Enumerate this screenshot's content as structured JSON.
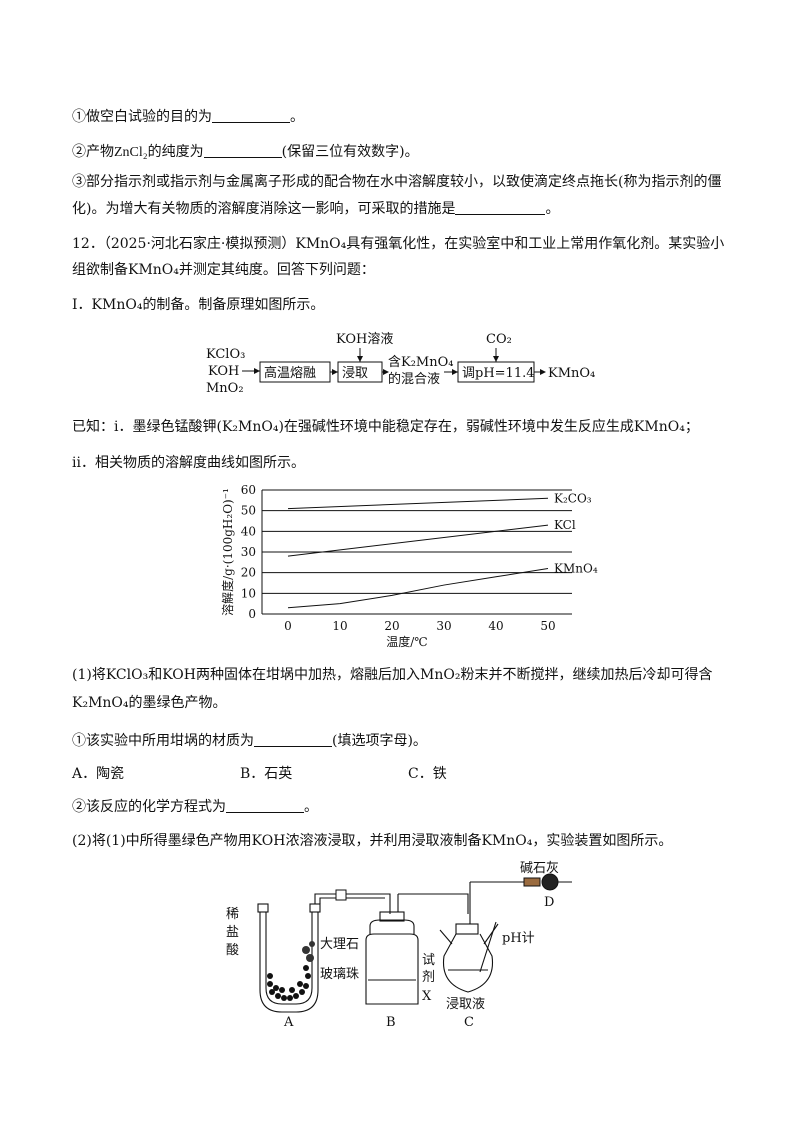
{
  "q_prev": {
    "item1_pre": "①做空白试验的目的为",
    "item1_post": "。",
    "item2_pre": "②产物",
    "item2_formula": "ZnCl₂",
    "item2_mid": "的纯度为",
    "item2_post": "(保留三位有效数字)。",
    "item3_line1": "③部分指示剂或指示剂与金属离子形成的配合物在水中溶解度较小，以致使滴定终点拖长(称为指示剂的僵",
    "item3_line2_pre": "化)。为增大有关物质的溶解度消除这一影响，可采取的措施是",
    "item3_post": "。"
  },
  "q12": {
    "number": "12．",
    "source": "（2025·河北石家庄·模拟预测）",
    "intro_a": "KMnO₄",
    "intro_b": "具有强氧化性，在实验室中和工业上常用作氧化剂。某实验小",
    "intro_line2_a": "组欲制备",
    "intro_line2_b": "KMnO₄",
    "intro_line2_c": "并测定其纯度。回答下列问题：",
    "part1_a": "I．",
    "part1_b": "KMnO₄",
    "part1_c": "的制备。制备原理如图所示。"
  },
  "flow": {
    "reactants": [
      "KClO₃",
      "KOH",
      "MnO₂"
    ],
    "box1": "高温熔融",
    "box2": "浸取",
    "box2_input": "KOH溶液",
    "intermediate_1": "含K₂MnO₄",
    "intermediate_2": "的混合液",
    "box3": "调pH=11.4",
    "box3_input": "CO₂",
    "product": "KMnO₄"
  },
  "known": {
    "line1_pre": "已知：i．墨绿色锰酸钾",
    "line1_formula": "(K₂MnO₄)",
    "line1_mid": "在强碱性环境中能稳定存在，弱碱性环境中发生反应生成",
    "line1_formula2": "KMnO₄",
    "line1_post": "；",
    "line2": "ii．相关物质的溶解度曲线如图所示。"
  },
  "chart_data": {
    "type": "line",
    "xlabel": "温度/℃",
    "ylabel": "溶解度/g·(100gH₂O)⁻¹",
    "xlim": [
      0,
      50
    ],
    "ylim": [
      0,
      60
    ],
    "x_ticks": [
      "0",
      "10",
      "20",
      "30",
      "40",
      "50"
    ],
    "y_ticks": [
      "0",
      "10",
      "20",
      "30",
      "40",
      "50",
      "60"
    ],
    "series": [
      {
        "name": "K₂CO₃",
        "x": [
          0,
          50
        ],
        "y": [
          51,
          56
        ]
      },
      {
        "name": "KCl",
        "x": [
          0,
          50
        ],
        "y": [
          28,
          43
        ]
      },
      {
        "name": "KMnO₄",
        "x": [
          0,
          10,
          20,
          30,
          40,
          50
        ],
        "y": [
          3,
          5,
          9,
          14,
          18,
          22
        ]
      }
    ]
  },
  "q1": {
    "line1_a": "(1)将",
    "line1_b": "KClO₃",
    "line1_c": "和",
    "line1_d": "KOH",
    "line1_e": "两种固体在坩埚中加热，熔融后加入",
    "line1_f": "MnO₂",
    "line1_g": "粉末并不断搅拌，继续加热后冷却可得含",
    "line2_a": "K₂MnO₄",
    "line2_b": "的墨绿色产物。",
    "sub1_pre": "①该实验中所用坩埚的材质为",
    "sub1_post": "(填选项字母)。",
    "options": [
      "A．陶瓷",
      "B．石英",
      "C．铁"
    ],
    "sub2_pre": "②该反应的化学方程式为",
    "sub2_post": "。"
  },
  "q2": {
    "line_a": "(2)将(1)中所得墨绿色产物用",
    "line_b": "KOH",
    "line_c": "浓溶液浸取，并利用浸取液制备",
    "line_d": "KMnO₄",
    "line_e": "，实验装置如图所示。"
  },
  "apparatus": {
    "acid_label": [
      "稀",
      "盐",
      "酸"
    ],
    "marble": "大理石",
    "beads": "玻璃珠",
    "label_A": "A",
    "label_B": "B",
    "reagent": [
      "试",
      "剂",
      "X"
    ],
    "label_C": "C",
    "leach": "浸取液",
    "ph": "pH计",
    "soda_lime": "碱石灰",
    "label_D": "D"
  }
}
